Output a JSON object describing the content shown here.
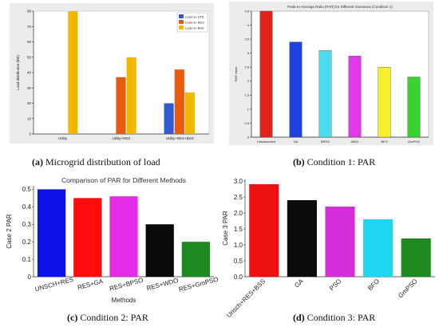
{
  "captions": [
    {
      "label": "(a)",
      "text": "Microgrid distribution of load"
    },
    {
      "label": "(b)",
      "text": "Condition 1: PAR"
    },
    {
      "label": "(c)",
      "text": "Condition 2: PAR"
    },
    {
      "label": "(d)",
      "text": "Condition 3: PAR"
    }
  ],
  "chart_data": [
    {
      "id": "a",
      "type": "bar",
      "title": "",
      "xlabel": "",
      "ylabel": "Load distribution (kW)",
      "ylim": [
        0,
        80
      ],
      "yticks": [
        0,
        10,
        20,
        30,
        40,
        50,
        60,
        70,
        80
      ],
      "categories": [
        "Utility",
        "Utility+RES",
        "Utility+RES+BSS"
      ],
      "series": [
        {
          "name": "Load on UTIL",
          "color": "#2f5bd0",
          "values": [
            0,
            0,
            20
          ]
        },
        {
          "name": "Load on RES",
          "color": "#e85a0c",
          "values": [
            0,
            37,
            42
          ]
        },
        {
          "name": "Load on BSS",
          "color": "#f2b800",
          "values": [
            80,
            50,
            27
          ]
        }
      ],
      "legend": "top-right",
      "grid": false
    },
    {
      "id": "b",
      "type": "bar",
      "title": "Peak-to-Average Ratio (PAR) for Different Scenarios (Condition 1)",
      "xlabel": "",
      "ylabel": "PAR Value",
      "ylim": [
        0,
        4.5
      ],
      "yticks": [
        0,
        0.5,
        1,
        1.5,
        2,
        2.5,
        3,
        3.5,
        4,
        4.5
      ],
      "categories": [
        "Unscheduled",
        "GA",
        "BPSO",
        "WDO",
        "BFO",
        "GmPSO"
      ],
      "values": [
        4.5,
        3.4,
        3.1,
        2.9,
        2.5,
        2.15
      ],
      "colors": [
        "#e0211c",
        "#1f3fe0",
        "#4bdcef",
        "#e039e6",
        "#f7ef2a",
        "#38d42e"
      ],
      "grid": false
    },
    {
      "id": "c",
      "type": "bar",
      "title": "Comparison of PAR for Different Methods",
      "xlabel": "Methods",
      "ylabel": "Case 2 PAR",
      "ylim": [
        0,
        0.52
      ],
      "yticks": [
        0,
        0.1,
        0.2,
        0.3,
        0.4,
        0.5
      ],
      "categories": [
        "UNSCH+RES",
        "RES+GA",
        "RES+BPSO",
        "RES+WDO",
        "RES+GmPSO"
      ],
      "values": [
        0.5,
        0.45,
        0.46,
        0.3,
        0.2
      ],
      "colors": [
        "#0b12e8",
        "#ff0d0d",
        "#e42be6",
        "#0a0a0a",
        "#1c8a20"
      ],
      "grid": false
    },
    {
      "id": "d",
      "type": "bar",
      "title": "",
      "xlabel": "",
      "ylabel": "Case 3 PAR",
      "ylim": [
        0,
        3.05
      ],
      "yticks": [
        0.0,
        0.5,
        1.0,
        1.5,
        2.0,
        2.5,
        3.0
      ],
      "ytick_labels": [
        "0.0",
        "0.5",
        "1.0",
        "1.5",
        "2.0",
        "2.5",
        "3.0"
      ],
      "categories": [
        "Unsch+RES+BSS",
        "GA",
        "PSO",
        "BFO",
        "GmPSO"
      ],
      "values": [
        2.9,
        2.4,
        2.2,
        1.8,
        1.2
      ],
      "colors": [
        "#ef1010",
        "#0b0b0b",
        "#d62ddb",
        "#1fd6f2",
        "#1d8a1f"
      ],
      "grid": false
    }
  ]
}
